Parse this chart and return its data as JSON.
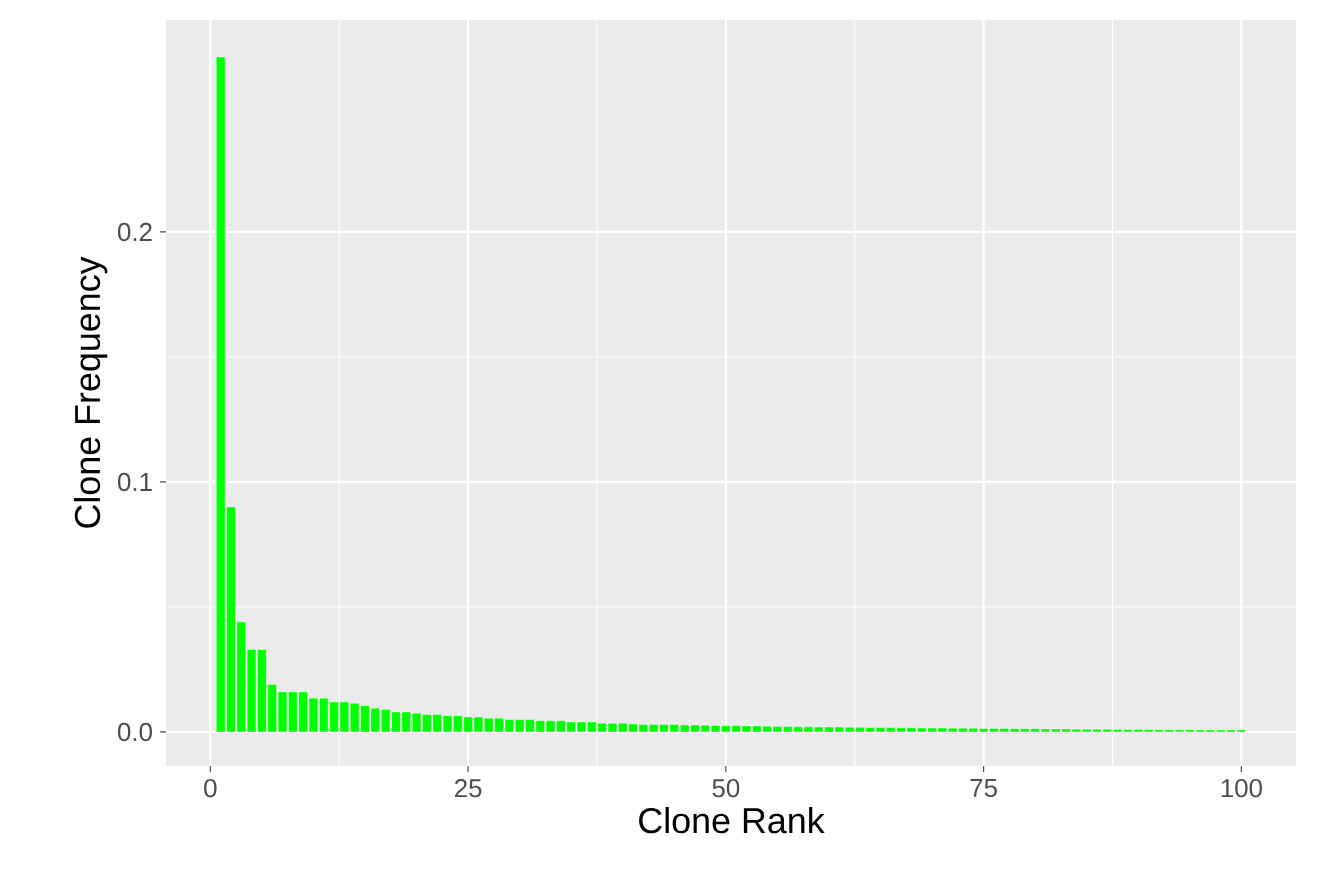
{
  "chart_data": {
    "type": "bar",
    "xlabel": "Clone Rank",
    "ylabel": "Clone Frequency",
    "color": "#00ff00",
    "grid": true,
    "x": [
      1,
      2,
      3,
      4,
      5,
      6,
      7,
      8,
      9,
      10,
      11,
      12,
      13,
      14,
      15,
      16,
      17,
      18,
      19,
      20,
      21,
      22,
      23,
      24,
      25,
      26,
      27,
      28,
      29,
      30,
      31,
      32,
      33,
      34,
      35,
      36,
      37,
      38,
      39,
      40,
      41,
      42,
      43,
      44,
      45,
      46,
      47,
      48,
      49,
      50,
      51,
      52,
      53,
      54,
      55,
      56,
      57,
      58,
      59,
      60,
      61,
      62,
      63,
      64,
      65,
      66,
      67,
      68,
      69,
      70,
      71,
      72,
      73,
      74,
      75,
      76,
      77,
      78,
      79,
      80,
      81,
      82,
      83,
      84,
      85,
      86,
      87,
      88,
      89,
      90,
      91,
      92,
      93,
      94,
      95,
      96,
      97,
      98,
      99,
      100
    ],
    "values": [
      0.27,
      0.09,
      0.044,
      0.033,
      0.033,
      0.019,
      0.016,
      0.016,
      0.016,
      0.0135,
      0.0135,
      0.012,
      0.012,
      0.0115,
      0.0105,
      0.0095,
      0.009,
      0.008,
      0.008,
      0.0075,
      0.007,
      0.007,
      0.0065,
      0.0065,
      0.006,
      0.006,
      0.0055,
      0.0055,
      0.005,
      0.005,
      0.005,
      0.0045,
      0.0045,
      0.0045,
      0.004,
      0.004,
      0.004,
      0.0035,
      0.0035,
      0.0035,
      0.0032,
      0.003,
      0.003,
      0.003,
      0.003,
      0.0028,
      0.0028,
      0.0027,
      0.0026,
      0.0025,
      0.0025,
      0.0024,
      0.0024,
      0.0023,
      0.0022,
      0.0022,
      0.0021,
      0.0021,
      0.002,
      0.002,
      0.002,
      0.0019,
      0.0019,
      0.0018,
      0.0018,
      0.0018,
      0.0017,
      0.0017,
      0.0016,
      0.0016,
      0.0016,
      0.0015,
      0.0015,
      0.0015,
      0.0014,
      0.0014,
      0.0014,
      0.0013,
      0.0013,
      0.0013,
      0.0012,
      0.0012,
      0.0012,
      0.0011,
      0.0011,
      0.0011,
      0.0011,
      0.001,
      0.001,
      0.001,
      0.001,
      0.0009,
      0.0009,
      0.0009,
      0.0009,
      0.0008,
      0.0008,
      0.0008,
      0.0008,
      0.0008
    ],
    "xlim": [
      -4.3,
      105.3
    ],
    "ylim": [
      -0.0136,
      0.2848
    ],
    "xticks": [
      0,
      25,
      50,
      75,
      100
    ],
    "yticks": [
      {
        "value": 0,
        "label": "0.0"
      },
      {
        "value": 0.1,
        "label": "0.1"
      },
      {
        "value": 0.2,
        "label": "0.2"
      }
    ]
  }
}
